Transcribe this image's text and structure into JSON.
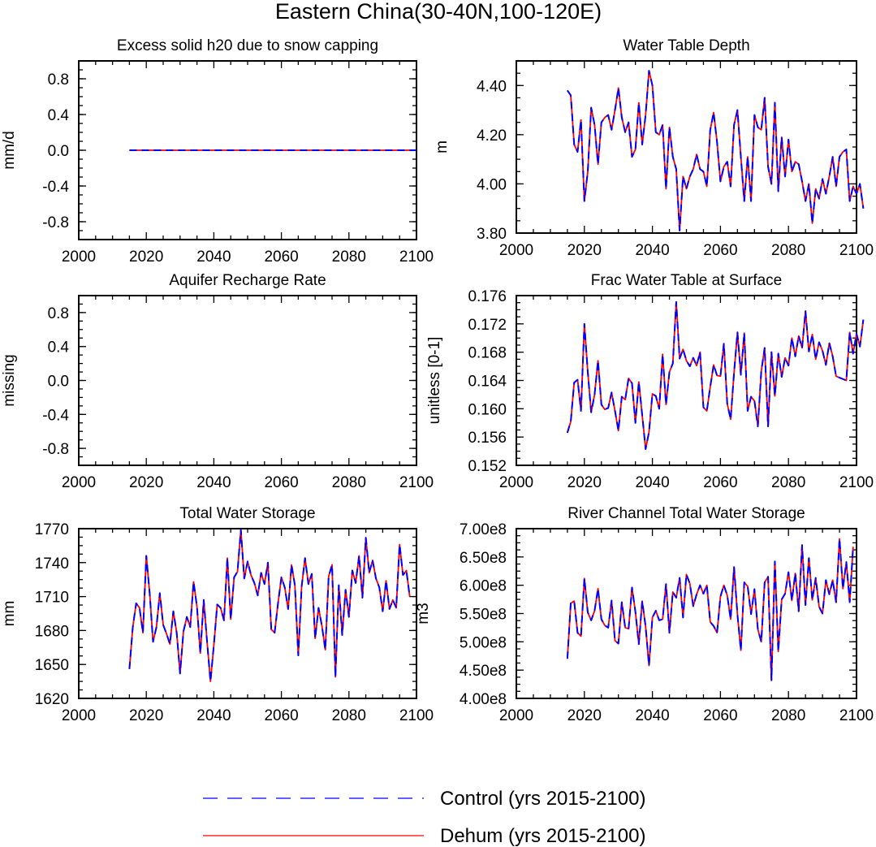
{
  "figure": {
    "title": "Eastern China(30-40N,100-120E)"
  },
  "legend": {
    "entries": [
      {
        "label": "Control (yrs 2015-2100)",
        "color": "#0000ff",
        "style": "dashed"
      },
      {
        "label": "Dehum (yrs 2015-2100)",
        "color": "#ff0000",
        "style": "solid"
      }
    ]
  },
  "chart_data": [
    {
      "type": "line",
      "title": "Excess solid h20 due to snow capping",
      "xlabel": "",
      "ylabel": "mm/d",
      "xlim": [
        2000,
        2100
      ],
      "ylim": [
        -1.0,
        1.0
      ],
      "xticks": [
        2000,
        2020,
        2040,
        2060,
        2080,
        2100
      ],
      "yticks": [
        -0.8,
        -0.4,
        0.0,
        0.4,
        0.8
      ],
      "ytick_labels": [
        "-0.8",
        "-0.4",
        "0.0",
        "0.4",
        "0.8"
      ],
      "series": [
        {
          "name": "Control (yrs 2015-2100)",
          "x": [
            2015,
            2100
          ],
          "values": [
            0.0,
            0.0
          ]
        },
        {
          "name": "Dehum (yrs 2015-2100)",
          "x": [
            2015,
            2100
          ],
          "values": [
            0.0,
            0.0
          ]
        }
      ]
    },
    {
      "type": "line",
      "title": "Water Table Depth",
      "xlabel": "",
      "ylabel": "m",
      "xlim": [
        2000,
        2100
      ],
      "ylim": [
        3.8,
        4.5
      ],
      "xticks": [
        2000,
        2020,
        2040,
        2060,
        2080,
        2100
      ],
      "yticks": [
        3.8,
        4.0,
        4.2,
        4.4
      ],
      "ytick_labels": [
        "3.80",
        "4.00",
        "4.20",
        "4.40"
      ],
      "series": [
        {
          "name": "Control (yrs 2015-2100)",
          "x_start": 2015,
          "values": [
            4.38,
            4.36,
            4.16,
            4.13,
            4.26,
            3.93,
            4.05,
            4.31,
            4.24,
            4.08,
            4.25,
            4.27,
            4.28,
            4.22,
            4.3,
            4.39,
            4.27,
            4.21,
            4.25,
            4.11,
            4.14,
            4.33,
            4.16,
            4.28,
            4.46,
            4.4,
            4.21,
            4.2,
            4.24,
            3.98,
            4.23,
            4.11,
            4.06,
            3.81,
            4.03,
            3.98,
            4.03,
            4.06,
            4.12,
            4.06,
            4.05,
            3.99,
            4.22,
            4.29,
            4.17,
            4.01,
            4.07,
            4.09,
            3.99,
            4.24,
            4.3,
            4.11,
            3.93,
            4.11,
            3.93,
            4.28,
            4.23,
            4.22,
            4.35,
            4.07,
            4.0,
            4.33,
            3.97,
            4.19,
            4.03,
            4.18,
            4.05,
            4.09,
            4.08,
            4.01,
            3.93,
            4.0,
            3.84,
            3.98,
            3.94,
            4.02,
            3.96,
            4.03,
            4.11,
            3.99,
            4.11,
            4.13,
            4.14,
            3.93,
            3.99,
            3.96,
            4.0,
            3.9
          ]
        },
        {
          "name": "Dehum (yrs 2015-2100)",
          "x_start": 2015,
          "values": [
            4.38,
            4.36,
            4.16,
            4.13,
            4.26,
            3.93,
            4.05,
            4.31,
            4.24,
            4.08,
            4.25,
            4.27,
            4.28,
            4.22,
            4.3,
            4.39,
            4.27,
            4.21,
            4.25,
            4.11,
            4.14,
            4.33,
            4.16,
            4.28,
            4.46,
            4.4,
            4.21,
            4.2,
            4.24,
            3.98,
            4.23,
            4.11,
            4.06,
            3.81,
            4.03,
            3.98,
            4.03,
            4.06,
            4.12,
            4.06,
            4.05,
            3.99,
            4.22,
            4.29,
            4.17,
            4.01,
            4.07,
            4.09,
            3.99,
            4.24,
            4.3,
            4.11,
            3.93,
            4.11,
            3.93,
            4.28,
            4.23,
            4.22,
            4.35,
            4.07,
            4.0,
            4.33,
            3.97,
            4.19,
            4.03,
            4.18,
            4.05,
            4.09,
            4.08,
            4.01,
            3.93,
            4.0,
            3.84,
            3.98,
            3.94,
            4.02,
            3.96,
            4.03,
            4.11,
            3.99,
            4.11,
            4.13,
            4.14,
            3.93,
            3.99,
            3.96,
            4.0,
            3.9
          ]
        }
      ]
    },
    {
      "type": "line",
      "title": "Aquifer Recharge Rate",
      "xlabel": "",
      "ylabel": "missing",
      "xlim": [
        2000,
        2100
      ],
      "ylim": [
        -1.0,
        1.0
      ],
      "xticks": [
        2000,
        2020,
        2040,
        2060,
        2080,
        2100
      ],
      "yticks": [
        -0.8,
        -0.4,
        0.0,
        0.4,
        0.8
      ],
      "ytick_labels": [
        "-0.8",
        "-0.4",
        "0.0",
        "0.4",
        "0.8"
      ],
      "series": []
    },
    {
      "type": "line",
      "title": "Frac Water Table at Surface",
      "xlabel": "",
      "ylabel": "unitless [0-1]",
      "xlim": [
        2000,
        2100
      ],
      "ylim": [
        0.152,
        0.176
      ],
      "xticks": [
        2000,
        2020,
        2040,
        2060,
        2080,
        2100
      ],
      "yticks": [
        0.152,
        0.156,
        0.16,
        0.164,
        0.168,
        0.172,
        0.176
      ],
      "ytick_labels": [
        "0.152",
        "0.156",
        "0.160",
        "0.164",
        "0.168",
        "0.172",
        "0.176"
      ],
      "series": [
        {
          "name": "Control (yrs 2015-2100)",
          "x_start": 2015,
          "values": [
            0.1566,
            0.1582,
            0.1637,
            0.1641,
            0.1597,
            0.172,
            0.1652,
            0.1595,
            0.162,
            0.1668,
            0.1606,
            0.1599,
            0.1601,
            0.1623,
            0.1597,
            0.1569,
            0.1617,
            0.1613,
            0.1643,
            0.1636,
            0.158,
            0.1638,
            0.1591,
            0.1543,
            0.1567,
            0.1621,
            0.1618,
            0.16,
            0.1677,
            0.1606,
            0.1652,
            0.1664,
            0.1751,
            0.1671,
            0.1684,
            0.1668,
            0.166,
            0.1672,
            0.1661,
            0.168,
            0.1602,
            0.1597,
            0.1631,
            0.1662,
            0.1647,
            0.1646,
            0.1692,
            0.1607,
            0.1585,
            0.1651,
            0.1708,
            0.1648,
            0.1707,
            0.1597,
            0.1617,
            0.1611,
            0.1575,
            0.1653,
            0.1686,
            0.1575,
            0.168,
            0.1618,
            0.1678,
            0.1645,
            0.1672,
            0.1661,
            0.17,
            0.1674,
            0.1703,
            0.1686,
            0.1738,
            0.1681,
            0.1705,
            0.167,
            0.1694,
            0.1682,
            0.1662,
            0.1693,
            0.1674,
            0.1646,
            0.1644,
            0.1642,
            0.164,
            0.1708,
            0.1678,
            0.1706,
            0.1688,
            0.1726
          ]
        },
        {
          "name": "Dehum (yrs 2015-2100)",
          "x_start": 2015,
          "values": [
            0.1566,
            0.1582,
            0.1637,
            0.1641,
            0.1597,
            0.172,
            0.1652,
            0.1595,
            0.162,
            0.1668,
            0.1606,
            0.1599,
            0.1601,
            0.1623,
            0.1597,
            0.1569,
            0.1617,
            0.1613,
            0.1643,
            0.1636,
            0.158,
            0.1638,
            0.1591,
            0.1543,
            0.1567,
            0.1621,
            0.1618,
            0.16,
            0.1677,
            0.1606,
            0.1652,
            0.1664,
            0.1751,
            0.1671,
            0.1684,
            0.1668,
            0.166,
            0.1672,
            0.1661,
            0.168,
            0.1602,
            0.1597,
            0.1631,
            0.1662,
            0.1647,
            0.1646,
            0.1692,
            0.1607,
            0.1585,
            0.1651,
            0.1708,
            0.1648,
            0.1707,
            0.1597,
            0.1617,
            0.1611,
            0.1575,
            0.1653,
            0.1686,
            0.1575,
            0.168,
            0.1618,
            0.1678,
            0.1645,
            0.1672,
            0.1661,
            0.17,
            0.1674,
            0.1703,
            0.1686,
            0.1738,
            0.1681,
            0.1705,
            0.167,
            0.1694,
            0.1682,
            0.1662,
            0.1693,
            0.1674,
            0.1646,
            0.1644,
            0.1642,
            0.164,
            0.1708,
            0.1678,
            0.1706,
            0.1688,
            0.1726
          ]
        }
      ]
    },
    {
      "type": "line",
      "title": "Total Water Storage",
      "xlabel": "",
      "ylabel": "mm",
      "xlim": [
        2000,
        2100
      ],
      "ylim": [
        1620,
        1770
      ],
      "xticks": [
        2000,
        2020,
        2040,
        2060,
        2080,
        2100
      ],
      "yticks": [
        1620,
        1650,
        1680,
        1710,
        1740,
        1770
      ],
      "ytick_labels": [
        "1620",
        "1650",
        "1680",
        "1710",
        "1740",
        "1770"
      ],
      "series": [
        {
          "name": "Control (yrs 2015-2100)",
          "x_start": 2015,
          "values": [
            1646,
            1683,
            1704,
            1700,
            1678,
            1746,
            1713,
            1670,
            1683,
            1713,
            1685,
            1677,
            1668,
            1697,
            1678,
            1642,
            1679,
            1692,
            1683,
            1723,
            1701,
            1660,
            1707,
            1670,
            1635,
            1667,
            1703,
            1700,
            1689,
            1744,
            1690,
            1727,
            1732,
            1769,
            1726,
            1741,
            1729,
            1722,
            1711,
            1731,
            1721,
            1740,
            1681,
            1678,
            1704,
            1727,
            1718,
            1699,
            1738,
            1720,
            1658,
            1719,
            1744,
            1721,
            1730,
            1673,
            1700,
            1684,
            1663,
            1728,
            1738,
            1639,
            1720,
            1676,
            1716,
            1692,
            1733,
            1722,
            1746,
            1709,
            1762,
            1731,
            1742,
            1726,
            1718,
            1697,
            1724,
            1699,
            1707,
            1700,
            1756,
            1729,
            1733,
            1710
          ]
        },
        {
          "name": "Dehum (yrs 2015-2100)",
          "x_start": 2015,
          "values": [
            1646,
            1683,
            1704,
            1700,
            1678,
            1746,
            1713,
            1670,
            1683,
            1713,
            1685,
            1677,
            1668,
            1697,
            1678,
            1642,
            1679,
            1692,
            1683,
            1723,
            1701,
            1660,
            1707,
            1670,
            1635,
            1667,
            1703,
            1700,
            1689,
            1744,
            1690,
            1727,
            1732,
            1769,
            1726,
            1741,
            1729,
            1722,
            1711,
            1731,
            1721,
            1740,
            1681,
            1678,
            1704,
            1727,
            1718,
            1699,
            1738,
            1720,
            1658,
            1719,
            1744,
            1721,
            1730,
            1673,
            1700,
            1684,
            1663,
            1728,
            1738,
            1639,
            1720,
            1676,
            1716,
            1692,
            1733,
            1722,
            1746,
            1709,
            1762,
            1731,
            1742,
            1726,
            1718,
            1697,
            1724,
            1699,
            1707,
            1700,
            1756,
            1729,
            1733,
            1710
          ]
        }
      ]
    },
    {
      "type": "line",
      "title": "River Channel Total Water Storage",
      "xlabel": "",
      "ylabel": "m3",
      "xlim": [
        2000,
        2100
      ],
      "ylim": [
        400000000,
        700000000
      ],
      "xticks": [
        2000,
        2020,
        2040,
        2060,
        2080,
        2100
      ],
      "yticks": [
        400000000,
        450000000,
        500000000,
        550000000,
        600000000,
        650000000,
        700000000
      ],
      "ytick_labels": [
        "4.00e8",
        "4.50e8",
        "5.00e8",
        "5.50e8",
        "6.00e8",
        "6.50e8",
        "7.00e8"
      ],
      "series": [
        {
          "name": "Control (yrs 2015-2100)",
          "x_start": 2015,
          "values": [
            470000000,
            568000000,
            572000000,
            516000000,
            510000000,
            612000000,
            552000000,
            538000000,
            555000000,
            594000000,
            540000000,
            529000000,
            525000000,
            573000000,
            502000000,
            497000000,
            570000000,
            525000000,
            523000000,
            596000000,
            553000000,
            496000000,
            572000000,
            527000000,
            458000000,
            543000000,
            555000000,
            538000000,
            540000000,
            602000000,
            516000000,
            588000000,
            578000000,
            613000000,
            543000000,
            619000000,
            603000000,
            563000000,
            584000000,
            600000000,
            585000000,
            600000000,
            535000000,
            528000000,
            516000000,
            580000000,
            600000000,
            582000000,
            540000000,
            632000000,
            548000000,
            485000000,
            605000000,
            598000000,
            549000000,
            593000000,
            522000000,
            500000000,
            605000000,
            615000000,
            432000000,
            642000000,
            483000000,
            575000000,
            585000000,
            623000000,
            573000000,
            621000000,
            554000000,
            671000000,
            565000000,
            648000000,
            574000000,
            613000000,
            562000000,
            550000000,
            609000000,
            584000000,
            609000000,
            570000000,
            682000000,
            594000000,
            641000000,
            570000000,
            668000000
          ]
        },
        {
          "name": "Dehum (yrs 2015-2100)",
          "x_start": 2015,
          "values": [
            470000000,
            568000000,
            572000000,
            516000000,
            510000000,
            612000000,
            552000000,
            538000000,
            555000000,
            594000000,
            540000000,
            529000000,
            525000000,
            573000000,
            502000000,
            497000000,
            570000000,
            525000000,
            523000000,
            596000000,
            553000000,
            496000000,
            572000000,
            527000000,
            458000000,
            543000000,
            555000000,
            538000000,
            540000000,
            602000000,
            516000000,
            588000000,
            578000000,
            613000000,
            543000000,
            619000000,
            603000000,
            563000000,
            584000000,
            600000000,
            585000000,
            600000000,
            535000000,
            528000000,
            516000000,
            580000000,
            600000000,
            582000000,
            540000000,
            632000000,
            548000000,
            485000000,
            605000000,
            598000000,
            549000000,
            593000000,
            522000000,
            500000000,
            605000000,
            615000000,
            432000000,
            642000000,
            483000000,
            575000000,
            585000000,
            623000000,
            573000000,
            621000000,
            554000000,
            671000000,
            565000000,
            648000000,
            574000000,
            613000000,
            562000000,
            550000000,
            609000000,
            584000000,
            609000000,
            570000000,
            682000000,
            594000000,
            641000000,
            570000000,
            668000000
          ]
        }
      ]
    }
  ]
}
